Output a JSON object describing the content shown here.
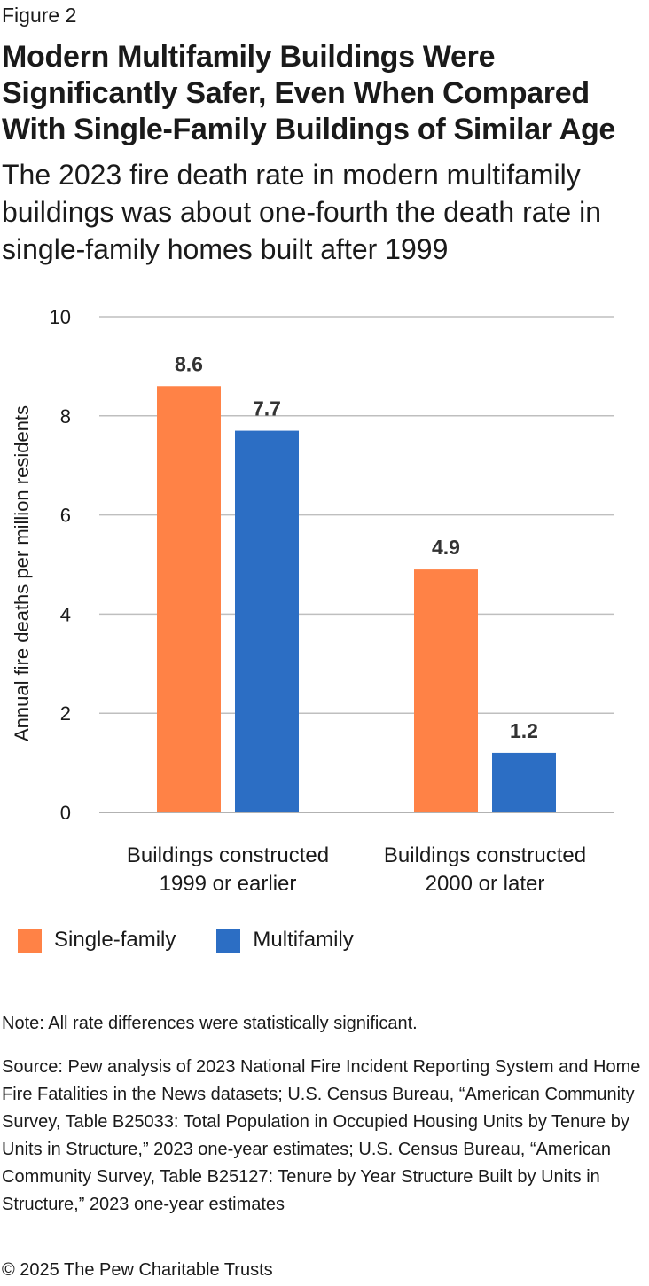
{
  "figure_label": "Figure 2",
  "title": "Modern Multifamily Buildings Were Significantly Safer, Even When Compared With Single-Family Buildings of Similar Age",
  "subtitle": "The 2023 fire death rate in modern multifamily buildings was about one-fourth the death rate in single-family homes built after 1999",
  "chart_data": {
    "type": "bar",
    "categories": [
      [
        "Buildings constructed",
        "1999 or earlier"
      ],
      [
        "Buildings constructed",
        "2000 or later"
      ]
    ],
    "series": [
      {
        "name": "Single-family",
        "values": [
          8.6,
          4.9
        ],
        "color": "#ff8246"
      },
      {
        "name": "Multifamily",
        "values": [
          7.7,
          1.2
        ],
        "color": "#2c6ec4"
      }
    ],
    "data_labels": [
      [
        "8.6",
        "4.9"
      ],
      [
        "7.7",
        "1.2"
      ]
    ],
    "ylabel": "Annual fire deaths per million residents",
    "ylim": [
      0,
      10
    ],
    "yticks": [
      0,
      2,
      4,
      6,
      8,
      10
    ],
    "grid": true,
    "legend_position": "bottom-left"
  },
  "legend": [
    {
      "label": "Single-family",
      "color": "#ff8246"
    },
    {
      "label": "Multifamily",
      "color": "#2c6ec4"
    }
  ],
  "note": "Note: All rate differences were statistically significant.",
  "source": "Source: Pew analysis of 2023 National Fire Incident Reporting System and Home Fire Fatalities in the News datasets; U.S. Census Bureau, “American Community Survey, Table B25033: Total Population in Occupied Housing Units by Tenure by Units in Structure,” 2023 one-year estimates; U.S. Census Bureau, “American Community Survey, Table B25127: Tenure by Year Structure Built by Units in Structure,” 2023 one-year estimates",
  "copyright": "© 2025 The Pew Charitable Trusts"
}
